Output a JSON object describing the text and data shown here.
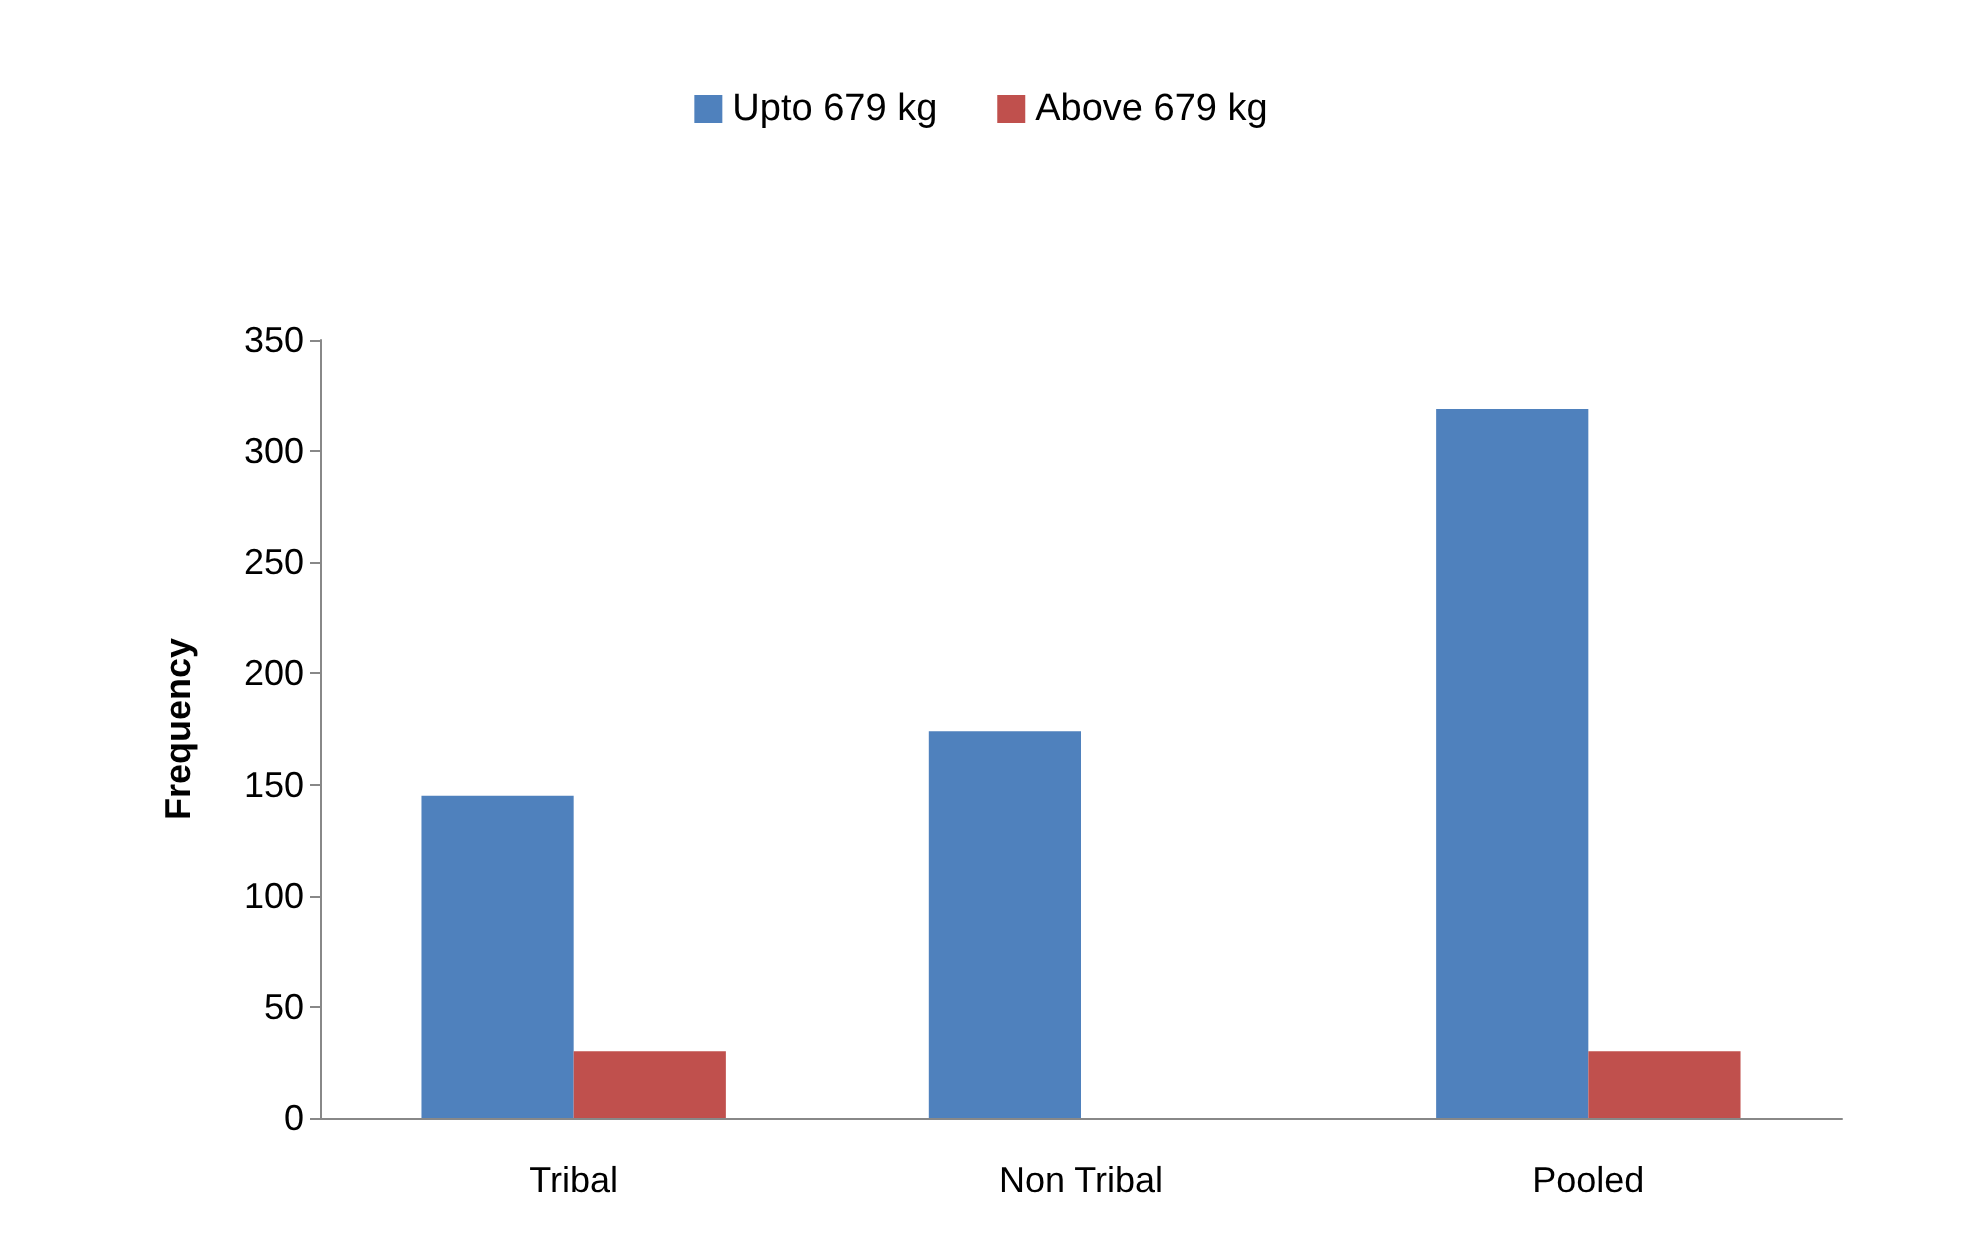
{
  "chart_data": {
    "type": "bar",
    "ylabel": "Frequency",
    "categories": [
      "Tribal",
      "Non Tribal",
      "Pooled"
    ],
    "series": [
      {
        "name": "Upto 679 kg",
        "color": "#4f81bd",
        "values": [
          145,
          174,
          319
        ]
      },
      {
        "name": "Above 679 kg",
        "color": "#c0504d",
        "values": [
          30,
          0,
          30
        ]
      }
    ],
    "ylim": [
      0,
      350
    ],
    "yticks": [
      0,
      50,
      100,
      150,
      200,
      250,
      300,
      350
    ],
    "grid": false,
    "legend": "top"
  }
}
